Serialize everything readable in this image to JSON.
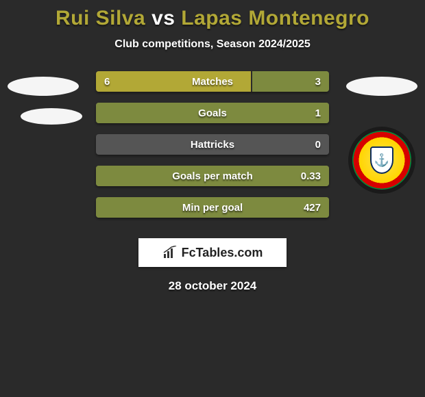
{
  "title": {
    "player1": "Rui Silva",
    "vs": "vs",
    "player2": "Lapas Montenegro",
    "color_player1": "#b2a836",
    "color_vs": "#ffffff",
    "color_player2": "#b2a836"
  },
  "subtitle": "Club competitions, Season 2024/2025",
  "colors": {
    "left_fill": "#b2a836",
    "right_fill": "#7d8a3f",
    "bar_bg": "#555555",
    "page_bg": "#2a2a2a"
  },
  "rows": [
    {
      "label": "Matches",
      "left": "6",
      "right": "3",
      "left_pct": 66.7,
      "right_pct": 33.3
    },
    {
      "label": "Goals",
      "left": "",
      "right": "1",
      "left_pct": 0,
      "right_pct": 100
    },
    {
      "label": "Hattricks",
      "left": "",
      "right": "0",
      "left_pct": 0,
      "right_pct": 0
    },
    {
      "label": "Goals per match",
      "left": "",
      "right": "0.33",
      "left_pct": 0,
      "right_pct": 100
    },
    {
      "label": "Min per goal",
      "left": "",
      "right": "427",
      "left_pct": 0,
      "right_pct": 100
    }
  ],
  "footer": {
    "brand": "FcTables.com",
    "date": "28 october 2024"
  },
  "crest": {
    "name": "club-crest"
  }
}
